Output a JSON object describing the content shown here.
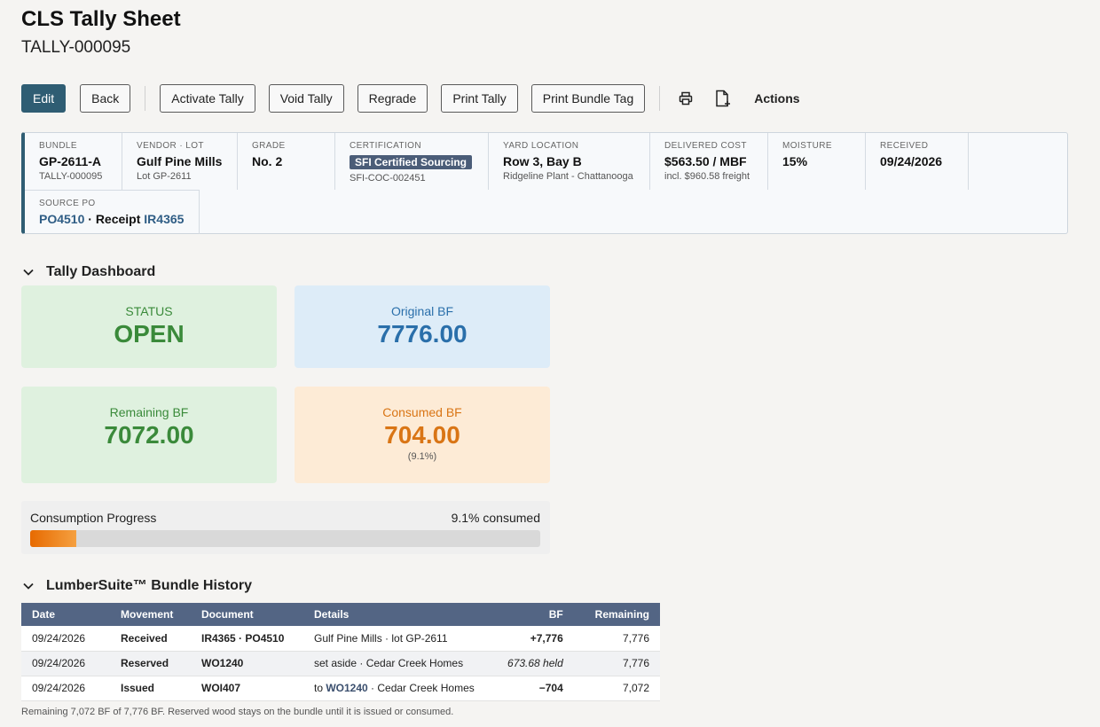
{
  "header": {
    "title": "CLS Tally Sheet",
    "subtitle": "TALLY-000095"
  },
  "toolbar": {
    "edit": "Edit",
    "back": "Back",
    "activate": "Activate Tally",
    "void": "Void Tally",
    "regrade": "Regrade",
    "print_tally": "Print Tally",
    "print_tag": "Print Bundle Tag",
    "actions": "Actions"
  },
  "info": {
    "bundle": {
      "label": "BUNDLE",
      "value": "GP-2611-A",
      "sub": "TALLY-000095"
    },
    "vendor": {
      "label": "VENDOR · LOT",
      "value": "Gulf Pine Mills",
      "sub": "Lot GP-2611"
    },
    "grade": {
      "label": "GRADE",
      "value": "No. 2"
    },
    "certification": {
      "label": "CERTIFICATION",
      "badge": "SFI Certified Sourcing",
      "sub": "SFI-COC-002451"
    },
    "yard": {
      "label": "YARD LOCATION",
      "value": "Row 3, Bay B",
      "sub": "Ridgeline Plant - Chattanooga"
    },
    "cost": {
      "label": "DELIVERED COST",
      "value": "$563.50 / MBF",
      "sub": "incl. $960.58 freight"
    },
    "moisture": {
      "label": "MOISTURE",
      "value": "15%"
    },
    "received": {
      "label": "RECEIVED",
      "value": "09/24/2026"
    },
    "source_po": {
      "label": "SOURCE PO",
      "po": "PO4510",
      "sep": " · Receipt ",
      "receipt": "IR4365"
    }
  },
  "dashboard": {
    "title": "Tally Dashboard",
    "status": {
      "label": "STATUS",
      "value": "OPEN"
    },
    "original": {
      "label": "Original BF",
      "value": "7776.00"
    },
    "remaining": {
      "label": "Remaining BF",
      "value": "7072.00"
    },
    "consumed": {
      "label": "Consumed BF",
      "value": "704.00",
      "sub": "(9.1%)"
    },
    "progress": {
      "label": "Consumption Progress",
      "text": "9.1% consumed",
      "fraction": 0.091
    }
  },
  "history": {
    "title": "LumberSuite™ Bundle History",
    "columns": [
      "Date",
      "Movement",
      "Document",
      "Details",
      "BF",
      "Remaining"
    ],
    "rows": [
      {
        "date": "09/24/2026",
        "movement": "Received",
        "document": "IR4365 · PO4510",
        "details": "Gulf Pine Mills · lot GP-2611",
        "bf": "+7,776",
        "remaining": "7,776"
      },
      {
        "date": "09/24/2026",
        "movement": "Reserved",
        "document": "WO1240",
        "details": "set aside · Cedar Creek Homes",
        "bf": "673.68 held",
        "remaining": "7,776"
      },
      {
        "date": "09/24/2026",
        "movement": "Issued",
        "document": "WOI407",
        "details_prefix": "to ",
        "details_link": "WO1240",
        "details_suffix": " · Cedar Creek Homes",
        "bf": "−704",
        "remaining": "7,072"
      }
    ],
    "footnote": "Remaining 7,072 BF of 7,776 BF. Reserved wood stays on the bundle until it is issued or consumed."
  }
}
